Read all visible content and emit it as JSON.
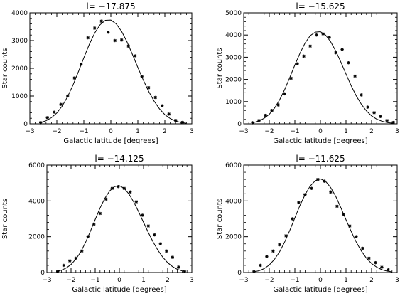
{
  "chart_data": [
    {
      "type": "scatter",
      "title": "l= −17.875",
      "xlabel": "Galactic latitude [degrees]",
      "ylabel": "Star counts",
      "xlim": [
        -3,
        3
      ],
      "ylim": [
        0,
        4000
      ],
      "xticks": [
        "−3",
        "−2",
        "−1",
        "0",
        "1",
        "2",
        "3"
      ],
      "yticks": [
        "0",
        "1000",
        "2000",
        "3000",
        "4000"
      ],
      "series": [
        {
          "kind": "points",
          "marker": "asterisk",
          "x": [
            -2.6,
            -2.35,
            -2.1,
            -1.85,
            -1.6,
            -1.35,
            -1.1,
            -0.85,
            -0.6,
            -0.35,
            -0.1,
            0.15,
            0.4,
            0.65,
            0.9,
            1.15,
            1.4,
            1.65,
            1.9,
            2.15,
            2.4,
            2.65
          ],
          "y": [
            40,
            220,
            420,
            700,
            1000,
            1650,
            2150,
            3100,
            3450,
            3700,
            3300,
            3000,
            3020,
            2800,
            2450,
            1700,
            1300,
            950,
            650,
            350,
            120,
            50
          ]
        },
        {
          "kind": "line",
          "x": [
            -2.6,
            -2.4,
            -2.2,
            -2.0,
            -1.8,
            -1.6,
            -1.4,
            -1.2,
            -1.0,
            -0.8,
            -0.6,
            -0.4,
            -0.2,
            0.0,
            0.2,
            0.4,
            0.6,
            0.8,
            1.0,
            1.2,
            1.4,
            1.6,
            1.8,
            2.0,
            2.2,
            2.4,
            2.6,
            2.8
          ],
          "y": [
            50,
            110,
            220,
            390,
            640,
            980,
            1400,
            1880,
            2380,
            2860,
            3270,
            3570,
            3730,
            3740,
            3600,
            3330,
            2950,
            2500,
            2030,
            1580,
            1170,
            820,
            540,
            330,
            190,
            100,
            50,
            20
          ]
        }
      ]
    },
    {
      "type": "scatter",
      "title": "l= −15.625",
      "xlabel": "Galactic latitude [degrees]",
      "ylabel": "Star counts",
      "xlim": [
        -3,
        3
      ],
      "ylim": [
        0,
        5000
      ],
      "xticks": [
        "−3",
        "−2",
        "−1",
        "0",
        "1",
        "2",
        "3"
      ],
      "yticks": [
        "0",
        "1000",
        "2000",
        "3000",
        "4000",
        "5000"
      ],
      "series": [
        {
          "kind": "points",
          "marker": "asterisk",
          "x": [
            -2.65,
            -2.4,
            -2.15,
            -1.9,
            -1.65,
            -1.4,
            -1.15,
            -0.9,
            -0.65,
            -0.4,
            -0.15,
            0.1,
            0.35,
            0.6,
            0.85,
            1.1,
            1.35,
            1.6,
            1.85,
            2.1,
            2.35,
            2.6,
            2.85
          ],
          "y": [
            50,
            150,
            380,
            600,
            850,
            1350,
            2050,
            2700,
            3050,
            3500,
            4000,
            4050,
            3900,
            3200,
            3350,
            2750,
            2150,
            1300,
            750,
            500,
            330,
            150,
            60
          ]
        },
        {
          "kind": "line",
          "x": [
            -2.6,
            -2.4,
            -2.2,
            -2.0,
            -1.8,
            -1.6,
            -1.4,
            -1.2,
            -1.0,
            -0.8,
            -0.6,
            -0.4,
            -0.2,
            0.0,
            0.2,
            0.4,
            0.6,
            0.8,
            1.0,
            1.2,
            1.4,
            1.6,
            1.8,
            2.0,
            2.2,
            2.4,
            2.6,
            2.8
          ],
          "y": [
            60,
            130,
            250,
            430,
            700,
            1070,
            1540,
            2080,
            2650,
            3180,
            3640,
            3970,
            4130,
            4150,
            4000,
            3700,
            3280,
            2780,
            2240,
            1720,
            1260,
            880,
            580,
            360,
            210,
            120,
            60,
            30
          ]
        }
      ]
    },
    {
      "type": "scatter",
      "title": "l= −14.125",
      "xlabel": "Galactic latitude [degrees]",
      "ylabel": "Star counts",
      "xlim": [
        -3,
        3
      ],
      "ylim": [
        0,
        6000
      ],
      "xticks": [
        "−3",
        "−2",
        "−1",
        "0",
        "1",
        "2",
        "3"
      ],
      "yticks": [
        "0",
        "2000",
        "4000",
        "6000"
      ],
      "series": [
        {
          "kind": "points",
          "marker": "asterisk",
          "x": [
            -2.55,
            -2.3,
            -2.05,
            -1.8,
            -1.55,
            -1.3,
            -1.05,
            -0.8,
            -0.55,
            -0.3,
            -0.05,
            0.2,
            0.45,
            0.7,
            0.95,
            1.2,
            1.45,
            1.7,
            1.95,
            2.2,
            2.45,
            2.7
          ],
          "y": [
            60,
            400,
            650,
            800,
            1200,
            2000,
            2700,
            3300,
            4100,
            4700,
            4800,
            4700,
            4500,
            3950,
            3200,
            2600,
            2100,
            1600,
            1200,
            850,
            300,
            50
          ]
        },
        {
          "kind": "line",
          "x": [
            -2.6,
            -2.4,
            -2.2,
            -2.0,
            -1.8,
            -1.6,
            -1.4,
            -1.2,
            -1.0,
            -0.8,
            -0.6,
            -0.4,
            -0.2,
            0.0,
            0.2,
            0.4,
            0.6,
            0.8,
            1.0,
            1.2,
            1.4,
            1.6,
            1.8,
            2.0,
            2.2,
            2.4,
            2.6
          ],
          "y": [
            60,
            130,
            250,
            450,
            750,
            1150,
            1680,
            2300,
            2960,
            3600,
            4150,
            4560,
            4800,
            4850,
            4700,
            4380,
            3920,
            3380,
            2800,
            2230,
            1700,
            1230,
            850,
            550,
            330,
            180,
            90
          ]
        }
      ]
    },
    {
      "type": "scatter",
      "title": "l= −11.625",
      "xlabel": "Galactic latitude [degrees]",
      "ylabel": "Star counts",
      "xlim": [
        -3,
        3
      ],
      "ylim": [
        0,
        6000
      ],
      "xticks": [
        "−3",
        "−2",
        "−1",
        "0",
        "1",
        "2",
        "3"
      ],
      "yticks": [
        "0",
        "2000",
        "4000",
        "6000"
      ],
      "series": [
        {
          "kind": "points",
          "marker": "asterisk",
          "x": [
            -2.6,
            -2.35,
            -2.1,
            -1.85,
            -1.6,
            -1.35,
            -1.1,
            -0.85,
            -0.6,
            -0.35,
            -0.1,
            0.15,
            0.4,
            0.65,
            0.9,
            1.15,
            1.4,
            1.65,
            1.9,
            2.15,
            2.4,
            2.65
          ],
          "y": [
            50,
            400,
            900,
            1200,
            1550,
            2050,
            3000,
            3900,
            4350,
            4700,
            5200,
            5100,
            4500,
            3700,
            3250,
            2600,
            2000,
            1350,
            800,
            550,
            300,
            150
          ]
        },
        {
          "kind": "line",
          "x": [
            -2.6,
            -2.4,
            -2.2,
            -2.0,
            -1.8,
            -1.6,
            -1.4,
            -1.2,
            -1.0,
            -0.8,
            -0.6,
            -0.4,
            -0.2,
            0.0,
            0.2,
            0.4,
            0.6,
            0.8,
            1.0,
            1.2,
            1.4,
            1.6,
            1.8,
            2.0,
            2.2,
            2.4,
            2.6,
            2.8
          ],
          "y": [
            40,
            100,
            220,
            420,
            730,
            1150,
            1700,
            2350,
            3050,
            3750,
            4350,
            4830,
            5130,
            5230,
            5100,
            4750,
            4250,
            3620,
            2950,
            2300,
            1700,
            1200,
            800,
            500,
            300,
            160,
            80,
            40
          ]
        }
      ]
    }
  ]
}
